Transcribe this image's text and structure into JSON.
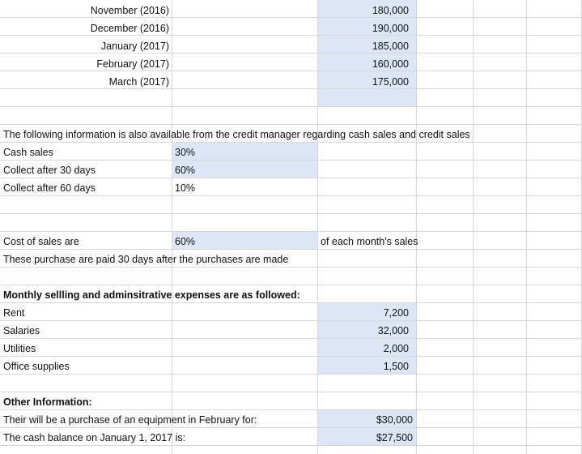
{
  "sales_rows": [
    {
      "month": "November (2016)",
      "amount": "180,000"
    },
    {
      "month": "December (2016)",
      "amount": "190,000"
    },
    {
      "month": "January (2017)",
      "amount": "185,000"
    },
    {
      "month": "February (2017)",
      "amount": "160,000"
    },
    {
      "month": "March (2017)",
      "amount": "175,000"
    }
  ],
  "credit_info": {
    "heading": "The following information is also available from the credit manager regarding cash sales and credit sales",
    "rows": [
      {
        "label": "Cash sales",
        "value": "30%"
      },
      {
        "label": "Collect after 30 days",
        "value": "60%"
      },
      {
        "label": "Collect after 60 days",
        "value": "10%"
      }
    ]
  },
  "cost_of_sales": {
    "label": "Cost of sales are",
    "value": "60%",
    "suffix": "of each month's sales",
    "note": "These purchase are paid 30 days after the purchases are made"
  },
  "expenses": {
    "heading": "Monthly sellling and adminsitrative expenses are as followed:",
    "rows": [
      {
        "label": "Rent",
        "value": "7,200"
      },
      {
        "label": "Salaries",
        "value": "32,000"
      },
      {
        "label": "Utilities",
        "value": "2,000"
      },
      {
        "label": "Office supplies",
        "value": "1,500"
      }
    ]
  },
  "other": {
    "heading": "Other Information:",
    "rows": [
      {
        "label": "Their will be a purchase of an equipment in February for:",
        "value": "$30,000"
      },
      {
        "label": "The cash balance on January 1, 2017 is:",
        "value": "$27,500"
      }
    ]
  },
  "colors": {
    "cell_fill": "#dce6f5",
    "gridline": "#d6d6d6"
  }
}
